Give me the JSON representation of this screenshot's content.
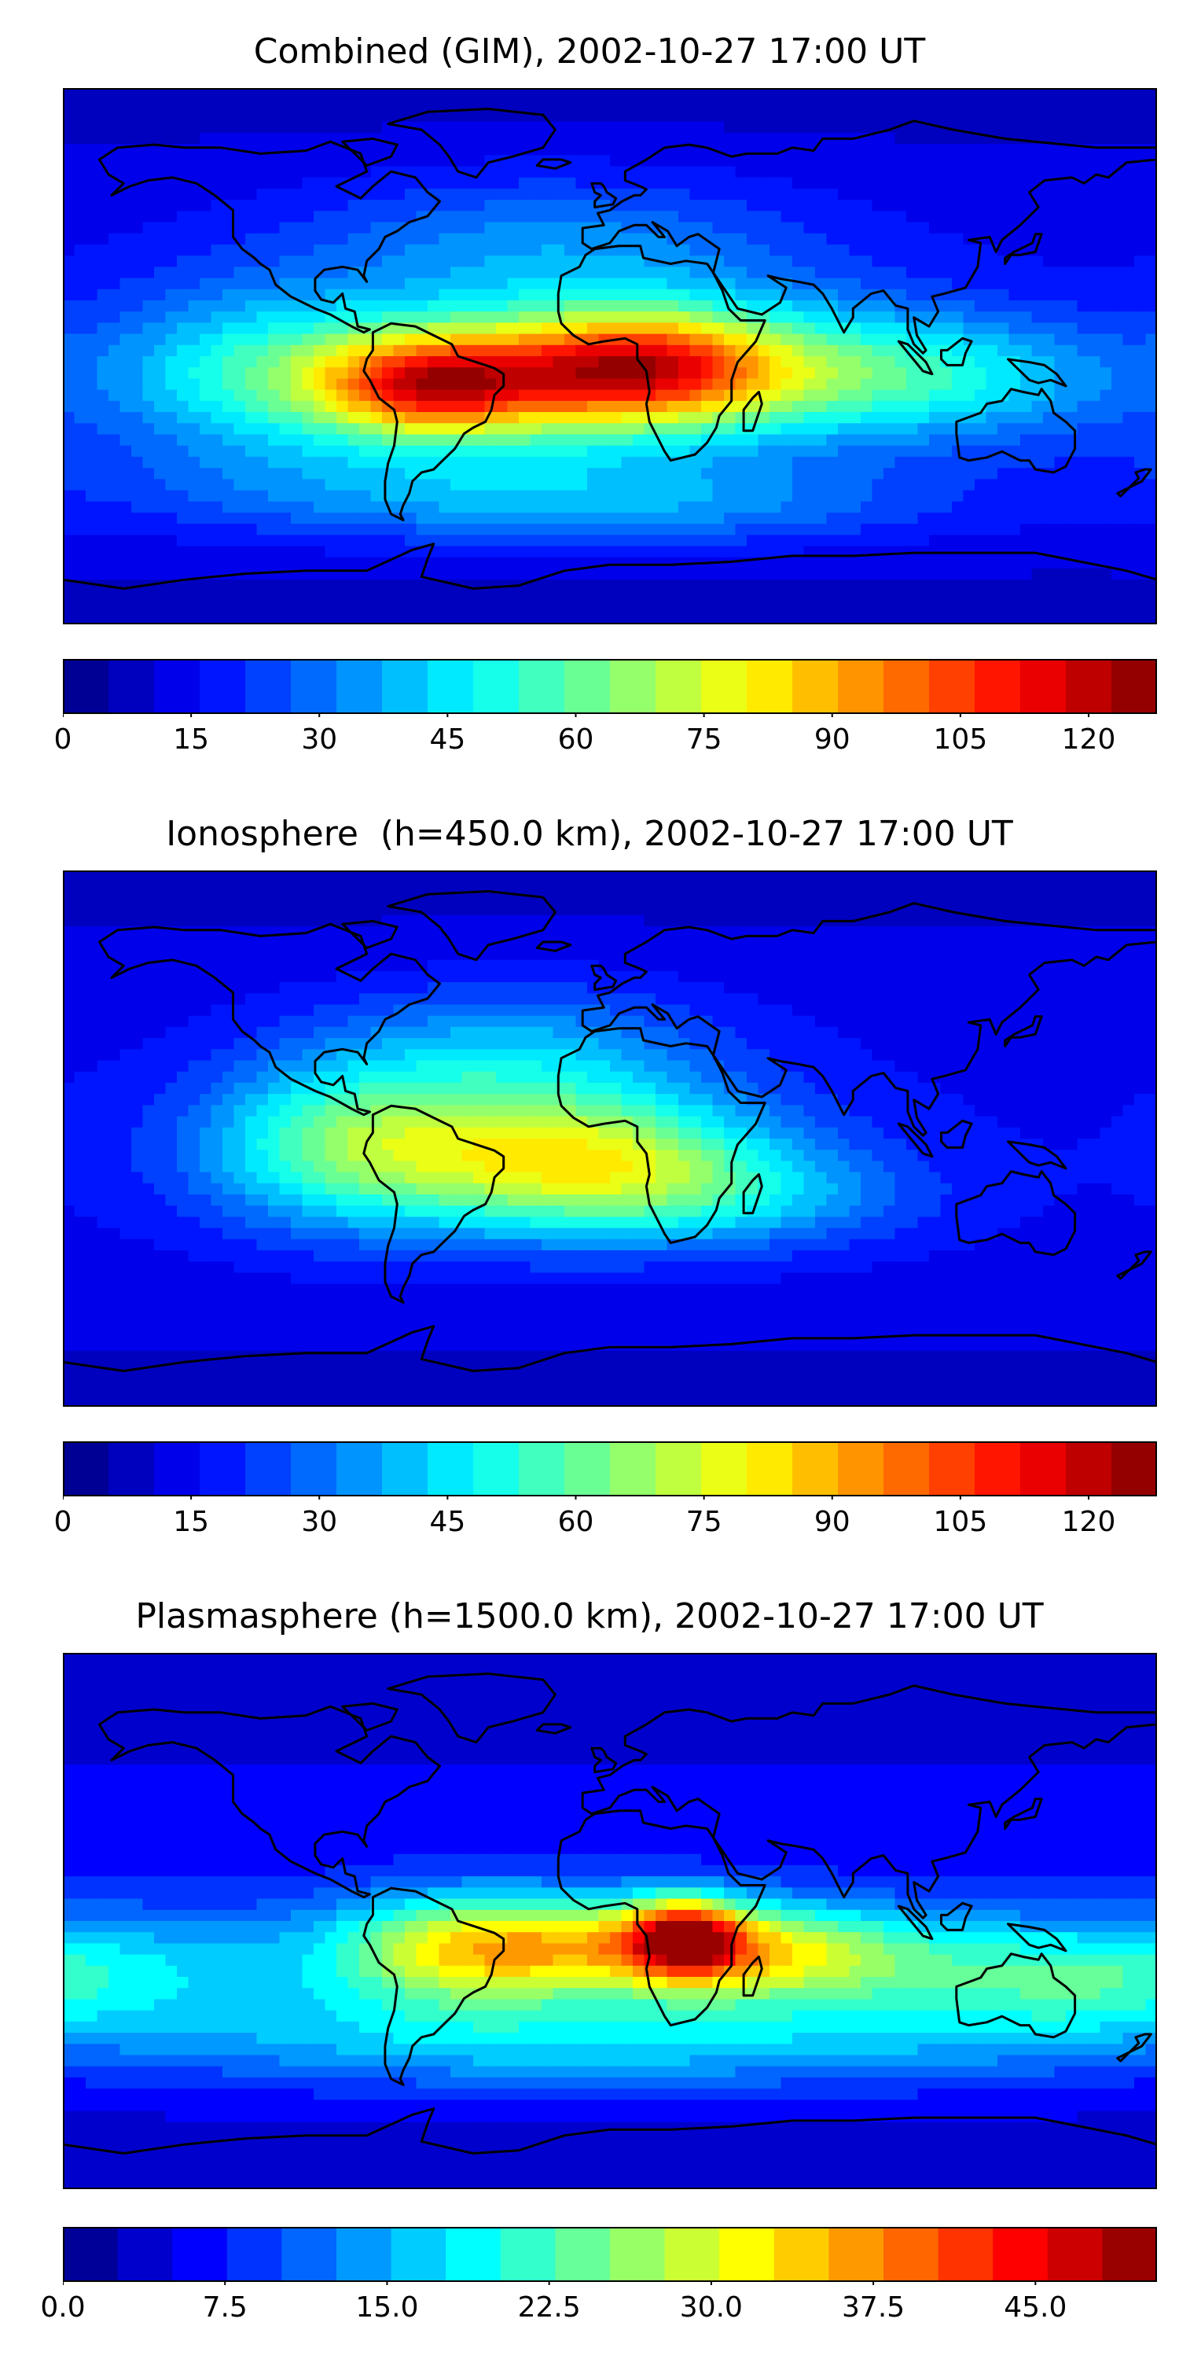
{
  "panels": [
    {
      "title": "Combined (GIM), 2002-10-27 17:00 UT",
      "colorbar": {
        "vmin": 0,
        "vmax": 128,
        "levels": 24,
        "ticks": [
          "0",
          "15",
          "30",
          "45",
          "60",
          "75",
          "90",
          "105",
          "120"
        ],
        "tick_values": [
          0,
          15,
          30,
          45,
          60,
          75,
          90,
          105,
          120
        ]
      },
      "features": [
        {
          "lon": -30,
          "lat": -8,
          "value": 100,
          "slon": 55,
          "slat": 16
        },
        {
          "lon": 10,
          "lat": -3,
          "value": 92,
          "slon": 30,
          "slat": 13
        },
        {
          "lon": -60,
          "lat": -10,
          "value": 95,
          "slon": 25,
          "slat": 12
        },
        {
          "lon": 60,
          "lat": -5,
          "value": 62,
          "slon": 45,
          "slat": 16
        },
        {
          "lon": 120,
          "lat": -8,
          "value": 48,
          "slon": 40,
          "slat": 15
        },
        {
          "lon": -120,
          "lat": -5,
          "value": 55,
          "slon": 35,
          "slat": 20
        },
        {
          "lon": -20,
          "lat": 35,
          "value": 48,
          "slon": 60,
          "slat": 18
        },
        {
          "lon": -60,
          "lat": -45,
          "value": 40,
          "slon": 80,
          "slat": 12
        },
        {
          "lon": 20,
          "lat": -50,
          "value": 38,
          "slon": 70,
          "slat": 10
        }
      ]
    },
    {
      "title": "Ionosphere  (h=450.0 km), 2002-10-27 17:00 UT",
      "colorbar": {
        "vmin": 0,
        "vmax": 128,
        "levels": 24,
        "ticks": [
          "0",
          "15",
          "30",
          "45",
          "60",
          "75",
          "90",
          "105",
          "120"
        ],
        "tick_values": [
          0,
          15,
          30,
          45,
          60,
          75,
          90,
          105,
          120
        ]
      },
      "features": [
        {
          "lon": -40,
          "lat": -5,
          "value": 78,
          "slon": 55,
          "slat": 18
        },
        {
          "lon": 0,
          "lat": -10,
          "value": 62,
          "slon": 40,
          "slat": 16
        },
        {
          "lon": -90,
          "lat": 0,
          "value": 50,
          "slon": 30,
          "slat": 20
        },
        {
          "lon": -30,
          "lat": 30,
          "value": 48,
          "slon": 45,
          "slat": 16
        },
        {
          "lon": 50,
          "lat": -20,
          "value": 40,
          "slon": 40,
          "slat": 12
        }
      ]
    },
    {
      "title": "Plasmasphere (h=1500.0 km), 2002-10-27 17:00 UT",
      "colorbar": {
        "vmin": 0,
        "vmax": 50.625,
        "levels": 20,
        "ticks": [
          "0.0",
          "7.5",
          "15.0",
          "22.5",
          "30.0",
          "37.5",
          "45.0"
        ],
        "tick_values": [
          0,
          7.5,
          15,
          22.5,
          30,
          37.5,
          45
        ]
      },
      "features": [
        {
          "lon": 25,
          "lat": -5,
          "value": 42,
          "slon": 13,
          "slat": 9
        },
        {
          "lon": 0,
          "lat": -8,
          "value": 36,
          "slon": 45,
          "slat": 12
        },
        {
          "lon": 60,
          "lat": -12,
          "value": 33,
          "slon": 40,
          "slat": 12
        },
        {
          "lon": -50,
          "lat": -10,
          "value": 30,
          "slon": 30,
          "slat": 14
        },
        {
          "lon": 0,
          "lat": -40,
          "value": 24,
          "slon": 120,
          "slat": 12
        },
        {
          "lon": -150,
          "lat": -15,
          "value": 19,
          "slon": 60,
          "slat": 15
        },
        {
          "lon": 150,
          "lat": -20,
          "value": 22,
          "slon": 40,
          "slat": 14
        }
      ]
    }
  ],
  "jet_stops": [
    "#00007f",
    "#0000ff",
    "#007fff",
    "#00ffff",
    "#7fff7f",
    "#ffff00",
    "#ff7f00",
    "#ff0000",
    "#7f0000"
  ]
}
